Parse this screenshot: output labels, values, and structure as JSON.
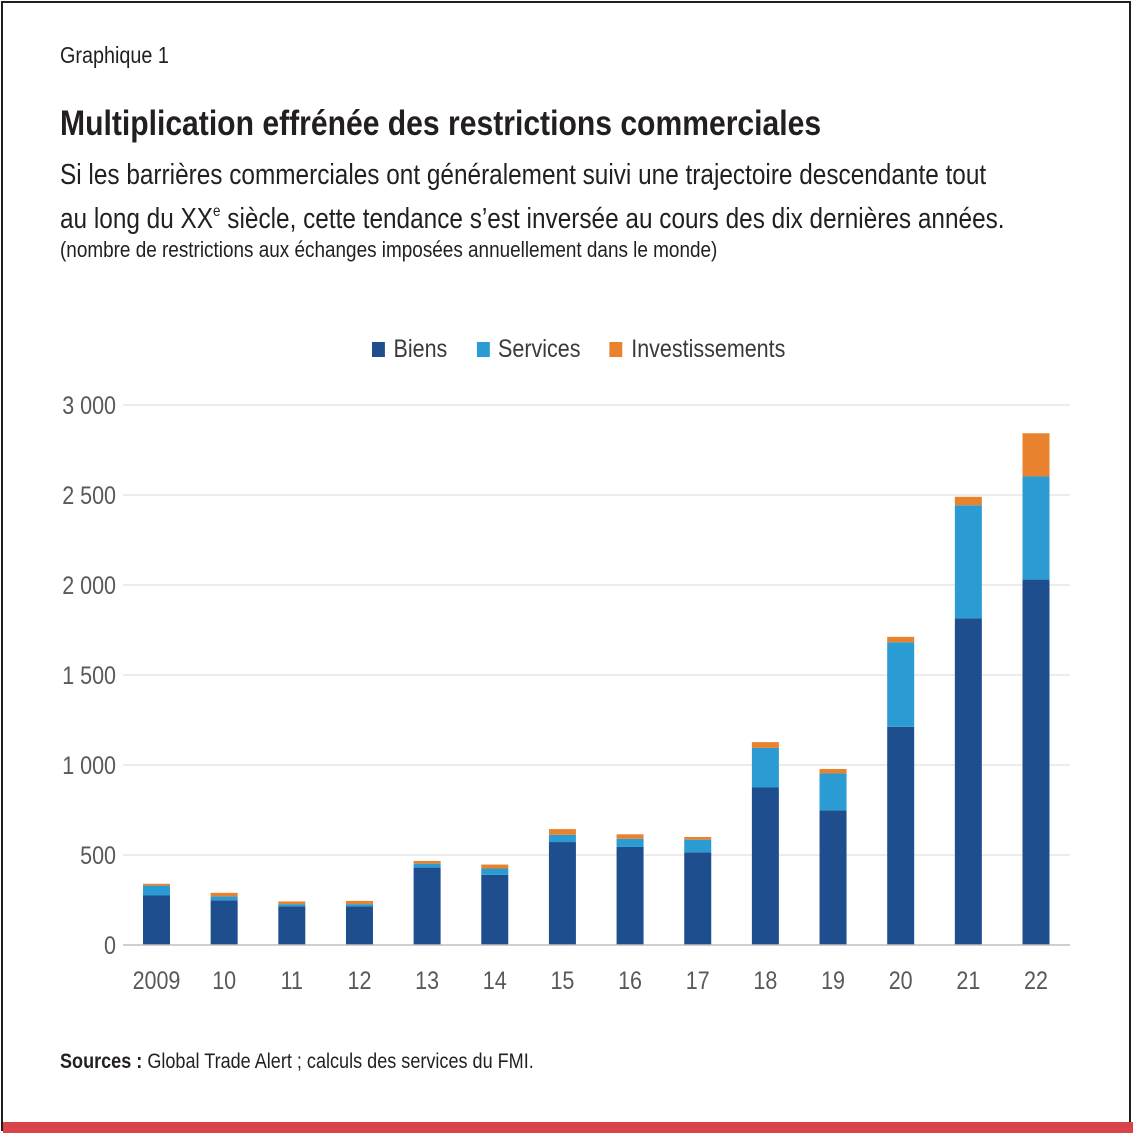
{
  "figure_label": "Graphique 1",
  "title": "Multiplication effrénée des restrictions commerciales",
  "subtitle_line1": "Si les barrières commerciales ont généralement suivi une trajectoire descendante tout",
  "subtitle_line2_pre": "au long du XX",
  "subtitle_line2_sup": "e",
  "subtitle_line2_post": " siècle, cette tendance s’est inversée au cours des dix dernières années.",
  "units_note": "(nombre de restrictions aux échanges imposées annuellement dans le monde)",
  "source_label": "Sources :",
  "source_text": " Global Trade Alert ; calculs des services du FMI.",
  "colors": {
    "biens": "#1f4e8f",
    "services": "#2b9bd3",
    "investissements": "#e8822e",
    "grid": "#d9d9d9",
    "axis_text": "#595959",
    "accent_bar": "#d9434b"
  },
  "chart_data": {
    "type": "bar",
    "stacked": true,
    "categories": [
      "2009",
      "10",
      "11",
      "12",
      "13",
      "14",
      "15",
      "16",
      "17",
      "18",
      "19",
      "20",
      "21",
      "22"
    ],
    "series": [
      {
        "name": "Biens",
        "color": "#1f4e8f",
        "values": [
          275,
          248,
          215,
          215,
          430,
          390,
          572,
          545,
          515,
          875,
          748,
          1212,
          1815,
          2030
        ]
      },
      {
        "name": "Services",
        "color": "#2b9bd3",
        "values": [
          55,
          22,
          12,
          12,
          22,
          35,
          40,
          45,
          70,
          220,
          205,
          470,
          628,
          573
        ]
      },
      {
        "name": "Investissements",
        "color": "#e8822e",
        "values": [
          10,
          20,
          15,
          18,
          15,
          22,
          32,
          25,
          15,
          32,
          25,
          30,
          47,
          240
        ]
      }
    ],
    "ylim": [
      0,
      3000
    ],
    "yticks": [
      0,
      500,
      1000,
      1500,
      2000,
      2500,
      3000
    ],
    "ytick_labels": [
      "0",
      "500",
      "1 000",
      "1 500",
      "2 000",
      "2 500",
      "3 000"
    ],
    "grid": true,
    "legend_position": "top-center"
  }
}
